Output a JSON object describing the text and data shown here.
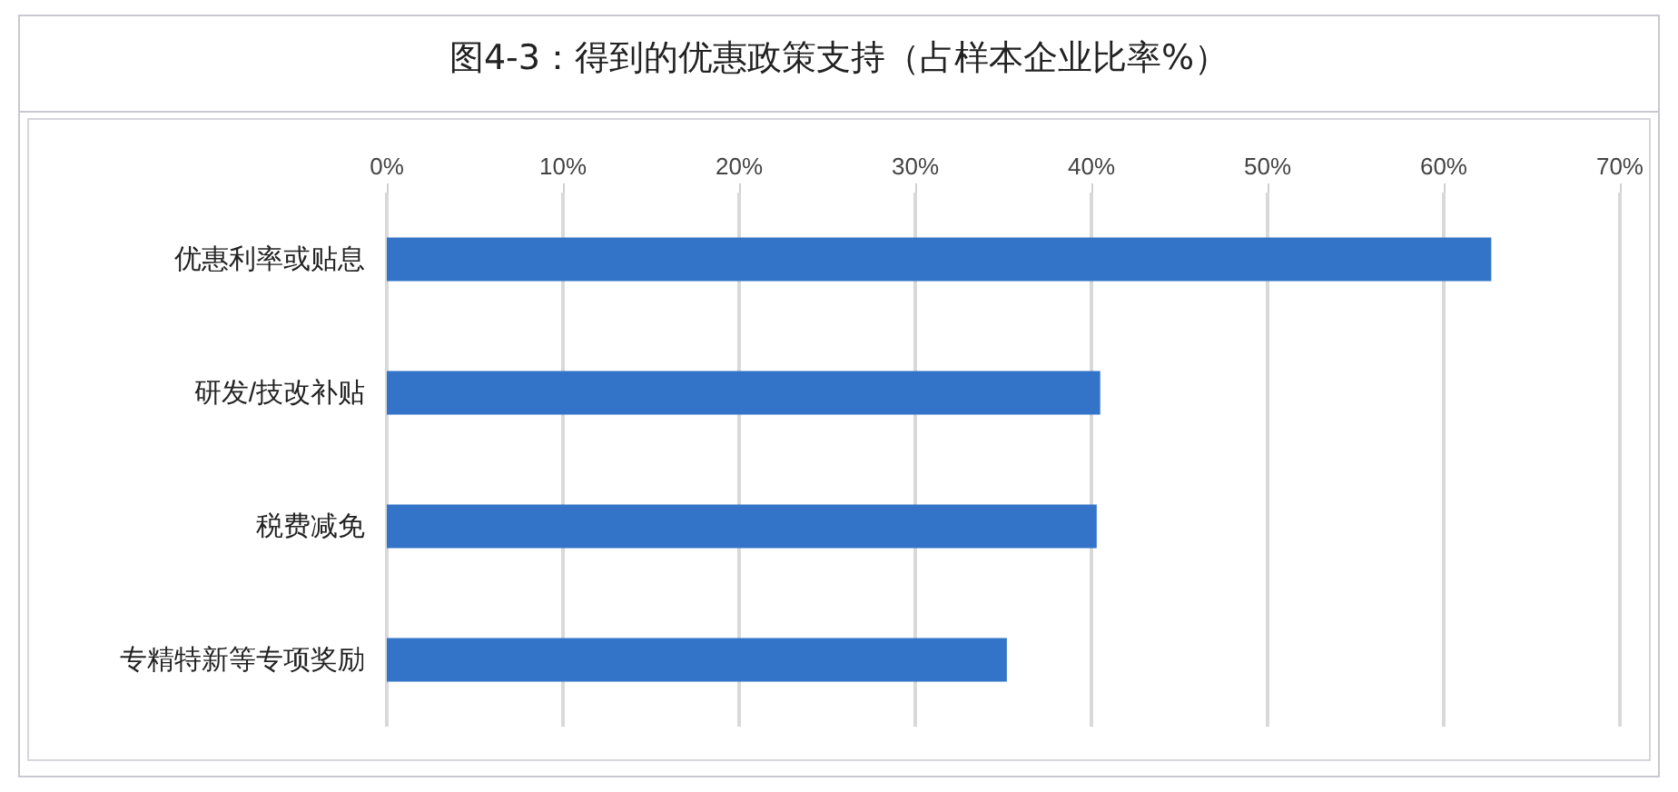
{
  "chart_data": {
    "type": "bar",
    "orientation": "horizontal",
    "title": "图4-3：得到的优惠政策支持（占样本企业比率%）",
    "categories": [
      "优惠利率或贴息",
      "研发/技改补贴",
      "税费减免",
      "专精特新等专项奖励"
    ],
    "values": [
      62.7,
      40.5,
      40.3,
      35.2
    ],
    "color": "#3374c8",
    "xlim": [
      0,
      70
    ],
    "xticks": [
      {
        "value": 0,
        "label": "0%"
      },
      {
        "value": 10,
        "label": "10%"
      },
      {
        "value": 20,
        "label": "20%"
      },
      {
        "value": 30,
        "label": "30%"
      },
      {
        "value": 40,
        "label": "40%"
      },
      {
        "value": 50,
        "label": "50%"
      },
      {
        "value": 60,
        "label": "60%"
      },
      {
        "value": 70,
        "label": "70%"
      }
    ],
    "grid": "x"
  }
}
